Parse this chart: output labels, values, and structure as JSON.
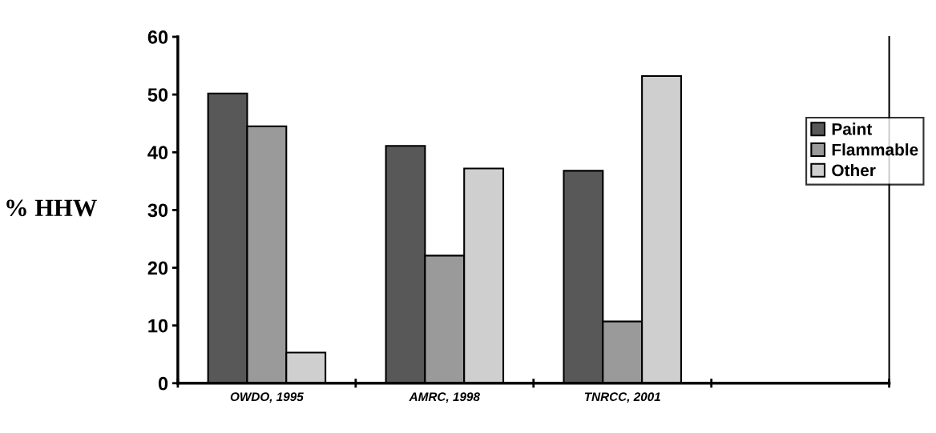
{
  "chart_data": {
    "type": "bar",
    "ylabel": "% HHW",
    "categories": [
      "OWDO, 1995",
      "AMRC, 1998",
      "TNRCC, 2001",
      null
    ],
    "series": [
      {
        "name": "Paint",
        "color": "#585858",
        "values": [
          50.2,
          41.1,
          36.8,
          null
        ]
      },
      {
        "name": "Flammable",
        "color": "#9a9a9a",
        "values": [
          44.5,
          22.1,
          10.7,
          null
        ]
      },
      {
        "name": "Other",
        "color": "#cfcfcf",
        "values": [
          5.3,
          37.2,
          53.2,
          null
        ]
      }
    ],
    "ylim": [
      0,
      60
    ],
    "yticks": [
      0,
      10,
      20,
      30,
      40,
      50,
      60
    ],
    "grid": false,
    "legend": "right"
  }
}
